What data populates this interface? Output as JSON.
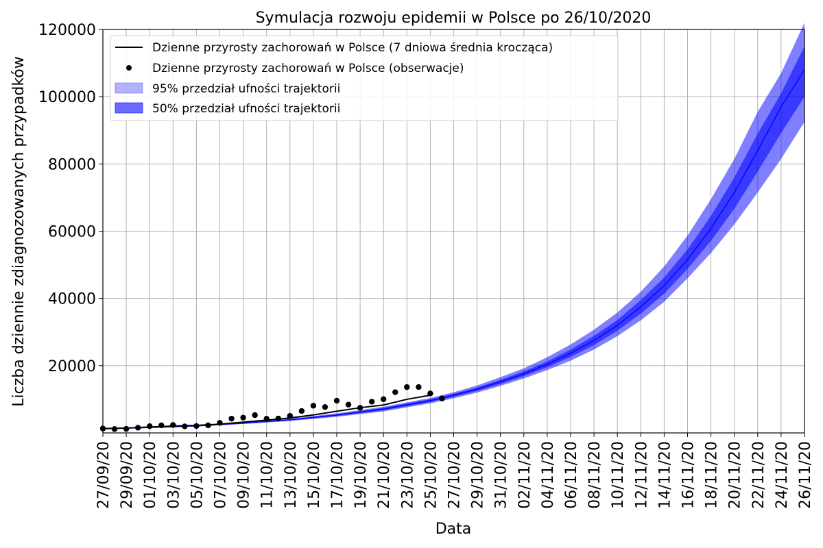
{
  "chart_data": {
    "type": "line",
    "title": "Symulacja rozwoju epidemii w Polsce po 26/10/2020",
    "xlabel": "Data",
    "ylabel": "Liczba dziennie zdiagnozowanych przypadków",
    "ylim": [
      0,
      120000
    ],
    "yticks": [
      "20000",
      "40000",
      "60000",
      "80000",
      "100000",
      "120000"
    ],
    "ytick_values": [
      20000,
      40000,
      60000,
      80000,
      100000,
      120000
    ],
    "xlim_days": [
      0,
      60
    ],
    "xticks": [
      "27/09/20",
      "29/09/20",
      "01/10/20",
      "03/10/20",
      "05/10/20",
      "07/10/20",
      "09/10/20",
      "11/10/20",
      "13/10/20",
      "15/10/20",
      "17/10/20",
      "19/10/20",
      "21/10/20",
      "23/10/20",
      "25/10/20",
      "27/10/20",
      "29/10/20",
      "31/10/20",
      "02/11/20",
      "04/11/20",
      "06/11/20",
      "08/11/20",
      "10/11/20",
      "12/11/20",
      "14/11/20",
      "16/11/20",
      "18/11/20",
      "20/11/20",
      "22/11/20",
      "24/11/20",
      "26/11/20"
    ],
    "grid": true,
    "legend_position": "upper-left",
    "legend": [
      {
        "label": "Dzienne przyrosty zachorowań w Polsce (7 dniowa średnia krocząca)",
        "kind": "line"
      },
      {
        "label": "Dzienne przyrosty zachorowań w Polsce (obserwacje)",
        "kind": "dot"
      },
      {
        "label": "95% przedział ufności trajektorii",
        "kind": "patch95"
      },
      {
        "label": "50% przedział ufności trajektorii",
        "kind": "patch50"
      }
    ],
    "colors": {
      "line": "#000000",
      "dots": "#000000",
      "band95": "#0000ff",
      "band50": "#0000ff",
      "median": "#0000ff",
      "grid": "#b0b0b0"
    },
    "observations": {
      "day": [
        0,
        1,
        2,
        3,
        4,
        5,
        6,
        7,
        8,
        9,
        10,
        11,
        12,
        13,
        14,
        15,
        16,
        17,
        18,
        19,
        20,
        21,
        22,
        23,
        24,
        25,
        26,
        27,
        28,
        29
      ],
      "values": [
        1300,
        1150,
        1200,
        1550,
        2000,
        2250,
        2350,
        1950,
        2050,
        2250,
        3000,
        4250,
        4550,
        5300,
        4200,
        4300,
        5068,
        6526,
        8094,
        7702,
        9587,
        8422,
        7482,
        9291,
        10040,
        12107,
        13628,
        13632,
        11742,
        10241
      ]
    },
    "rolling_mean": {
      "day": [
        0,
        2,
        4,
        6,
        8,
        10,
        12,
        14,
        16,
        18,
        20,
        22,
        24,
        26,
        28
      ],
      "values": [
        1300,
        1450,
        1750,
        2050,
        2250,
        2600,
        3200,
        3800,
        4450,
        5350,
        6450,
        7500,
        8300,
        10000,
        11200
      ]
    },
    "projection": {
      "day": [
        0,
        4,
        8,
        12,
        16,
        20,
        24,
        28,
        30,
        32,
        34,
        36,
        38,
        40,
        42,
        44,
        46,
        48,
        50,
        52,
        54,
        56,
        58,
        60
      ],
      "median": [
        1200,
        1600,
        2100,
        2900,
        3900,
        5300,
        7100,
        9600,
        11200,
        13000,
        15200,
        17600,
        20400,
        23700,
        27500,
        32000,
        37500,
        43800,
        51600,
        60800,
        71500,
        84000,
        97000,
        108000
      ],
      "lower95": [
        1100,
        1450,
        1900,
        2650,
        3550,
        4800,
        6400,
        8800,
        10300,
        12000,
        14000,
        16200,
        18700,
        21500,
        24800,
        28800,
        33500,
        39000,
        46000,
        53500,
        62000,
        71500,
        81500,
        92500
      ],
      "upper95": [
        1300,
        1750,
        2300,
        3150,
        4250,
        5800,
        7800,
        10400,
        12100,
        14100,
        16600,
        19200,
        22500,
        26300,
        30700,
        35800,
        42000,
        49500,
        58700,
        69500,
        81500,
        95500,
        107000,
        122000
      ],
      "lower50": [
        1150,
        1520,
        2000,
        2780,
        3720,
        5050,
        6750,
        9200,
        10750,
        12500,
        14600,
        16900,
        19550,
        22600,
        26150,
        30400,
        35500,
        41400,
        48800,
        57100,
        66700,
        77700,
        89200,
        100000
      ],
      "upper50": [
        1250,
        1680,
        2200,
        3020,
        4080,
        5550,
        7450,
        10000,
        11650,
        13500,
        15800,
        18300,
        21250,
        24800,
        28850,
        33600,
        39500,
        46200,
        54600,
        64500,
        76000,
        89000,
        101000,
        115000
      ]
    }
  }
}
